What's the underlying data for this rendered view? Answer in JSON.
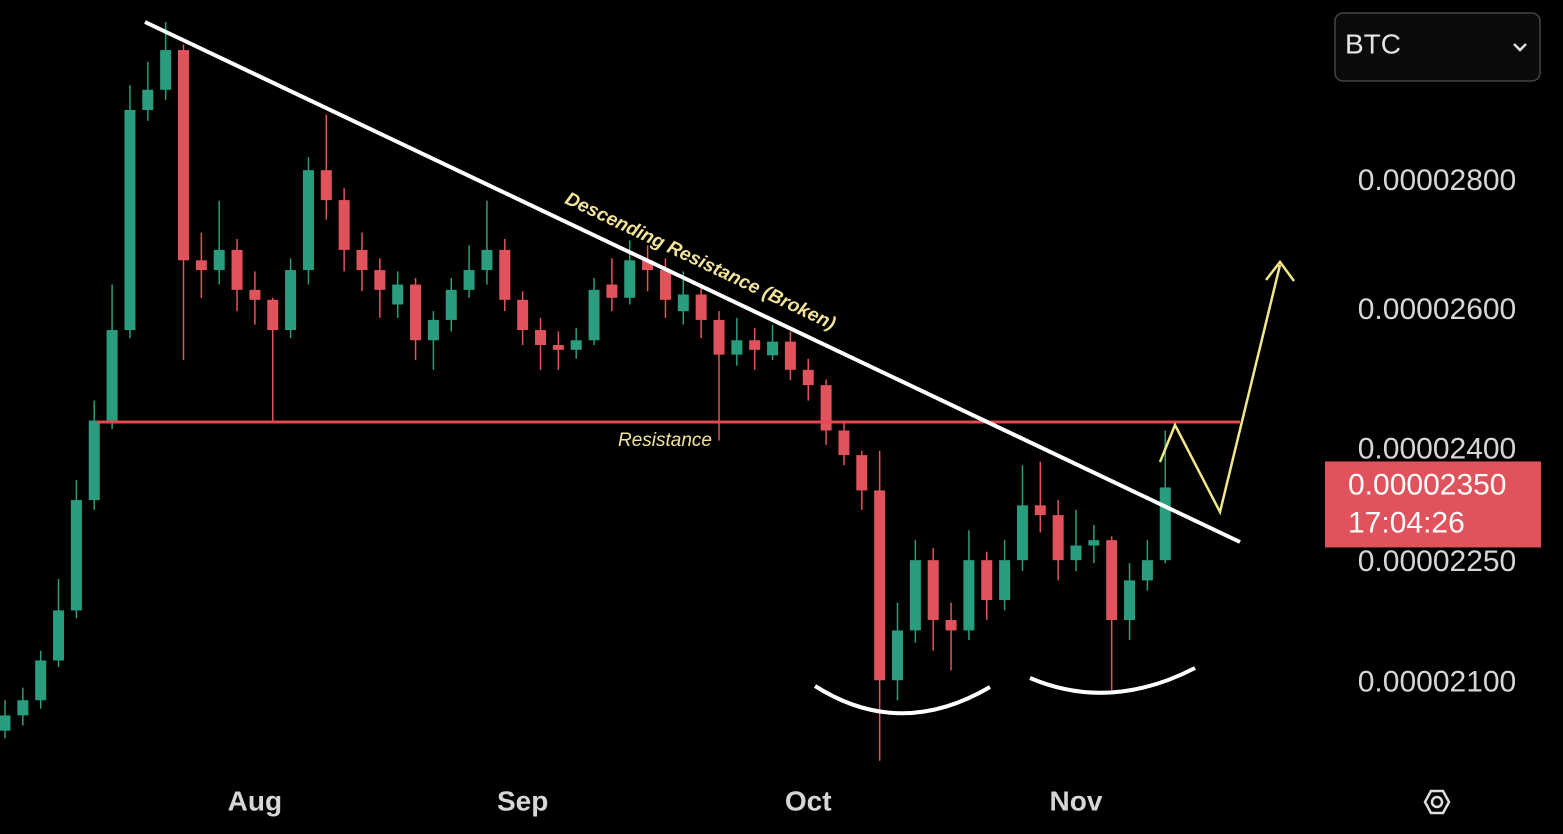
{
  "chart_data": {
    "type": "candlestick",
    "symbol": "BTC",
    "log_scale": true,
    "grid": false,
    "up_color": "#2a9d7f",
    "down_color": "#e0535c",
    "categories": [
      null,
      null,
      null,
      null,
      null,
      null,
      null,
      null,
      null,
      null,
      null,
      null,
      null,
      null,
      "Aug",
      null,
      null,
      null,
      null,
      null,
      null,
      null,
      null,
      null,
      null,
      null,
      null,
      null,
      null,
      "Sep",
      null,
      null,
      null,
      null,
      null,
      null,
      null,
      null,
      null,
      null,
      null,
      null,
      null,
      null,
      null,
      "Oct",
      null,
      null,
      null,
      null,
      null,
      null,
      null,
      null,
      null,
      null,
      null,
      null,
      null,
      null,
      "Nov",
      null,
      null,
      null,
      null,
      null
    ],
    "open": [
      2.044e-05,
      2.062e-05,
      2.08e-05,
      2.128e-05,
      2.19e-05,
      2.333e-05,
      2.442e-05,
      2.572e-05,
      2.918e-05,
      2.952e-05,
      3.02e-05,
      2.677e-05,
      2.662e-05,
      2.693e-05,
      2.632e-05,
      2.617e-05,
      2.572e-05,
      2.662e-05,
      2.819e-05,
      2.771e-05,
      2.693e-05,
      2.662e-05,
      2.61e-05,
      2.64e-05,
      2.557e-05,
      2.587e-05,
      2.632e-05,
      2.662e-05,
      2.693e-05,
      2.617e-05,
      2.572e-05,
      2.55e-05,
      2.543e-05,
      2.557e-05,
      2.64e-05,
      2.62e-05,
      2.677e-05,
      2.662e-05,
      2.6e-05,
      2.625e-05,
      2.587e-05,
      2.536e-05,
      2.557e-05,
      2.535e-05,
      2.555e-05,
      2.514e-05,
      2.492e-05,
      2.428e-05,
      2.394e-05,
      2.346e-05,
      2.104e-05,
      2.165e-05,
      2.254e-05,
      2.178e-05,
      2.165e-05,
      2.254e-05,
      2.203e-05,
      2.254e-05,
      2.326e-05,
      2.313e-05,
      2.254e-05,
      2.273e-05,
      2.28e-05,
      2.178e-05,
      2.228e-05,
      2.254e-05
    ],
    "high": [
      2.08e-05,
      2.095e-05,
      2.14e-05,
      2.23e-05,
      2.36e-05,
      2.47e-05,
      2.64e-05,
      2.96e-05,
      3e-05,
      3.069e-05,
      3.03e-05,
      2.72e-05,
      2.77e-05,
      2.71e-05,
      2.66e-05,
      2.62e-05,
      2.68e-05,
      2.84e-05,
      2.91e-05,
      2.79e-05,
      2.72e-05,
      2.68e-05,
      2.66e-05,
      2.65e-05,
      2.6e-05,
      2.65e-05,
      2.7e-05,
      2.77e-05,
      2.71e-05,
      2.63e-05,
      2.59e-05,
      2.57e-05,
      2.575e-05,
      2.65e-05,
      2.68e-05,
      2.708e-05,
      2.7e-05,
      2.68e-05,
      2.66e-05,
      2.64e-05,
      2.6e-05,
      2.59e-05,
      2.575e-05,
      2.58e-05,
      2.57e-05,
      2.53e-05,
      2.5e-05,
      2.44e-05,
      2.4e-05,
      2.4e-05,
      2.2e-05,
      2.28e-05,
      2.27e-05,
      2.2e-05,
      2.293e-05,
      2.265e-05,
      2.28e-05,
      2.38e-05,
      2.385e-05,
      2.333e-05,
      2.32e-05,
      2.3e-05,
      2.285e-05,
      2.25e-05,
      2.28e-05,
      2.428e-05
    ],
    "low": [
      2.035e-05,
      2.05e-05,
      2.07e-05,
      2.12e-05,
      2.18e-05,
      2.32e-05,
      2.43e-05,
      2.56e-05,
      2.9e-05,
      2.935e-05,
      2.528e-05,
      2.62e-05,
      2.64e-05,
      2.6e-05,
      2.58e-05,
      2.442e-05,
      2.56e-05,
      2.64e-05,
      2.74e-05,
      2.66e-05,
      2.63e-05,
      2.59e-05,
      2.59e-05,
      2.528e-05,
      2.514e-05,
      2.57e-05,
      2.62e-05,
      2.64e-05,
      2.6e-05,
      2.55e-05,
      2.514e-05,
      2.514e-05,
      2.53e-05,
      2.55e-05,
      2.6e-05,
      2.61e-05,
      2.63e-05,
      2.59e-05,
      2.58e-05,
      2.56e-05,
      2.414e-05,
      2.52e-05,
      2.514e-05,
      2.528e-05,
      2.499e-05,
      2.47e-05,
      2.408e-05,
      2.38e-05,
      2.32e-05,
      2.009e-05,
      2.08e-05,
      2.15e-05,
      2.14e-05,
      2.116e-05,
      2.153e-05,
      2.178e-05,
      2.19e-05,
      2.24e-05,
      2.29e-05,
      2.228e-05,
      2.24e-05,
      2.25e-05,
      2.092e-05,
      2.153e-05,
      2.215e-05,
      2.25e-05
    ],
    "close": [
      2.062e-05,
      2.08e-05,
      2.128e-05,
      2.19e-05,
      2.333e-05,
      2.442e-05,
      2.572e-05,
      2.918e-05,
      2.952e-05,
      3.02e-05,
      2.677e-05,
      2.662e-05,
      2.693e-05,
      2.632e-05,
      2.617e-05,
      2.572e-05,
      2.662e-05,
      2.819e-05,
      2.771e-05,
      2.693e-05,
      2.662e-05,
      2.632e-05,
      2.64e-05,
      2.557e-05,
      2.587e-05,
      2.632e-05,
      2.662e-05,
      2.693e-05,
      2.617e-05,
      2.572e-05,
      2.55e-05,
      2.543e-05,
      2.557e-05,
      2.632e-05,
      2.62e-05,
      2.677e-05,
      2.662e-05,
      2.617e-05,
      2.625e-05,
      2.587e-05,
      2.536e-05,
      2.557e-05,
      2.543e-05,
      2.555e-05,
      2.514e-05,
      2.492e-05,
      2.428e-05,
      2.394e-05,
      2.346e-05,
      2.104e-05,
      2.165e-05,
      2.254e-05,
      2.178e-05,
      2.165e-05,
      2.254e-05,
      2.203e-05,
      2.254e-05,
      2.326e-05,
      2.313e-05,
      2.254e-05,
      2.273e-05,
      2.28e-05,
      2.178e-05,
      2.228e-05,
      2.254e-05,
      2.35e-05
    ],
    "ylim": [
      1.987e-05,
      3.108e-05
    ],
    "yticks": [
      {
        "value": 2.1e-05,
        "label": "0.00002100"
      },
      {
        "value": 2.25e-05,
        "label": "0.00002250"
      },
      {
        "value": 2.4e-05,
        "label": "0.00002400"
      },
      {
        "value": 2.6e-05,
        "label": "0.00002600"
      },
      {
        "value": 2.8e-05,
        "label": "0.00002800"
      }
    ],
    "last_price": {
      "value": 2.35e-05,
      "label": "0.00002350"
    },
    "countdown": "17:04:26",
    "annotations": {
      "trendline": "Descending Resistance (Broken)",
      "level": "Resistance"
    }
  }
}
